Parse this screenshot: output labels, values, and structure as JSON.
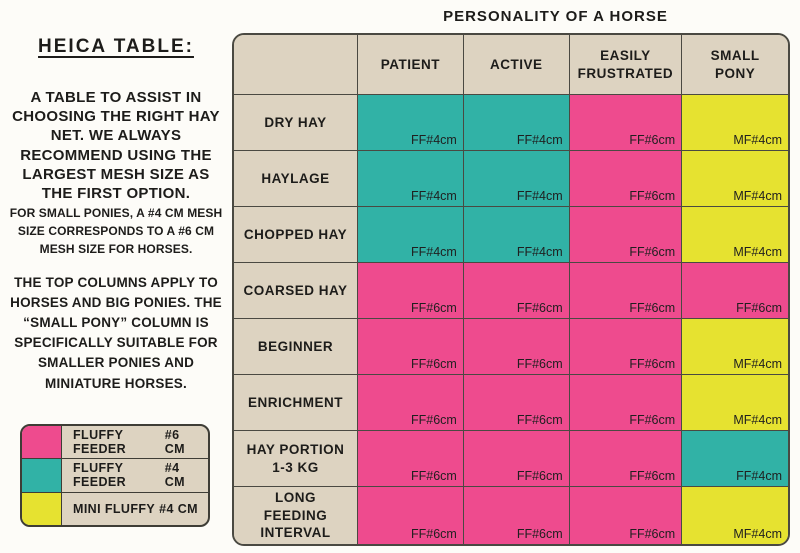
{
  "colors": {
    "pink_ff6": "#ee4b8e",
    "teal_ff4": "#31b2a6",
    "yellow_mf4": "#e6e230",
    "tan": "#ddd3c1",
    "border": "#4a4942",
    "page_bg": "#fdfcf8"
  },
  "left_panel": {
    "heading": "HEICA TABLE:",
    "intro": "A TABLE TO ASSIST IN CHOOSING THE RIGHT HAY NET. WE ALWAYS RECOMMEND USING THE LARGEST MESH SIZE AS THE FIRST OPTION.",
    "note_small_ponies": "FOR SMALL PONIES, A #4 CM MESH SIZE CORRESPONDS TO A #6 CM MESH SIZE FOR HORSES.",
    "note_columns": "THE TOP COLUMNS APPLY TO HORSES AND BIG PONIES. THE “SMALL PONY” COLUMN IS SPECIFICALLY SUITABLE FOR SMALLER PONIES AND MINIATURE HORSES."
  },
  "legend": {
    "items": [
      {
        "product": "FF6",
        "name": "FLUFFY FEEDER",
        "size": "#6 CM",
        "color": "#ee4b8e"
      },
      {
        "product": "FF4",
        "name": "FLUFFY FEEDER",
        "size": "#4 CM",
        "color": "#31b2a6"
      },
      {
        "product": "MF4",
        "name": "MINI FLUFFY",
        "size": "#4 CM",
        "color": "#e6e230"
      }
    ]
  },
  "table": {
    "title": "PERSONALITY OF A HORSE",
    "columns": [
      "PATIENT",
      "ACTIVE",
      "EASILY FRUSTRATED",
      "SMALL PONY"
    ],
    "rows": [
      {
        "label": "DRY HAY",
        "cells": [
          {
            "text": "FF#4cm",
            "product": "FF4"
          },
          {
            "text": "FF#4cm",
            "product": "FF4"
          },
          {
            "text": "FF#6cm",
            "product": "FF6"
          },
          {
            "text": "MF#4cm",
            "product": "MF4"
          }
        ]
      },
      {
        "label": "HAYLAGE",
        "cells": [
          {
            "text": "FF#4cm",
            "product": "FF4"
          },
          {
            "text": "FF#4cm",
            "product": "FF4"
          },
          {
            "text": "FF#6cm",
            "product": "FF6"
          },
          {
            "text": "MF#4cm",
            "product": "MF4"
          }
        ]
      },
      {
        "label": "CHOPPED HAY",
        "cells": [
          {
            "text": "FF#4cm",
            "product": "FF4"
          },
          {
            "text": "FF#4cm",
            "product": "FF4"
          },
          {
            "text": "FF#6cm",
            "product": "FF6"
          },
          {
            "text": "MF#4cm",
            "product": "MF4"
          }
        ]
      },
      {
        "label": "COARSED HAY",
        "cells": [
          {
            "text": "FF#6cm",
            "product": "FF6"
          },
          {
            "text": "FF#6cm",
            "product": "FF6"
          },
          {
            "text": "FF#6cm",
            "product": "FF6"
          },
          {
            "text": "FF#6cm",
            "product": "FF6"
          }
        ]
      },
      {
        "label": "BEGINNER",
        "cells": [
          {
            "text": "FF#6cm",
            "product": "FF6"
          },
          {
            "text": "FF#6cm",
            "product": "FF6"
          },
          {
            "text": "FF#6cm",
            "product": "FF6"
          },
          {
            "text": "MF#4cm",
            "product": "MF4"
          }
        ]
      },
      {
        "label": "ENRICHMENT",
        "cells": [
          {
            "text": "FF#6cm",
            "product": "FF6"
          },
          {
            "text": "FF#6cm",
            "product": "FF6"
          },
          {
            "text": "FF#6cm",
            "product": "FF6"
          },
          {
            "text": "MF#4cm",
            "product": "MF4"
          }
        ]
      },
      {
        "label": "HAY PORTION 1-3 KG",
        "cells": [
          {
            "text": "FF#6cm",
            "product": "FF6"
          },
          {
            "text": "FF#6cm",
            "product": "FF6"
          },
          {
            "text": "FF#6cm",
            "product": "FF6"
          },
          {
            "text": "FF#4cm",
            "product": "FF4"
          }
        ]
      },
      {
        "label": "LONG FEEDING INTERVAL",
        "cells": [
          {
            "text": "FF#6cm",
            "product": "FF6"
          },
          {
            "text": "FF#6cm",
            "product": "FF6"
          },
          {
            "text": "FF#6cm",
            "product": "FF6"
          },
          {
            "text": "MF#4cm",
            "product": "MF4"
          }
        ]
      }
    ]
  },
  "chart_data": {
    "type": "table",
    "title": "PERSONALITY OF A HORSE",
    "columns": [
      "",
      "PATIENT",
      "ACTIVE",
      "EASILY FRUSTRATED",
      "SMALL PONY"
    ],
    "rows": [
      [
        "DRY HAY",
        "FF#4cm",
        "FF#4cm",
        "FF#6cm",
        "MF#4cm"
      ],
      [
        "HAYLAGE",
        "FF#4cm",
        "FF#4cm",
        "FF#6cm",
        "MF#4cm"
      ],
      [
        "CHOPPED HAY",
        "FF#4cm",
        "FF#4cm",
        "FF#6cm",
        "MF#4cm"
      ],
      [
        "COARSED HAY",
        "FF#6cm",
        "FF#6cm",
        "FF#6cm",
        "FF#6cm"
      ],
      [
        "BEGINNER",
        "FF#6cm",
        "FF#6cm",
        "FF#6cm",
        "MF#4cm"
      ],
      [
        "ENRICHMENT",
        "FF#6cm",
        "FF#6cm",
        "FF#6cm",
        "MF#4cm"
      ],
      [
        "HAY PORTION 1-3 KG",
        "FF#6cm",
        "FF#6cm",
        "FF#6cm",
        "FF#4cm"
      ],
      [
        "LONG FEEDING INTERVAL",
        "FF#6cm",
        "FF#6cm",
        "FF#6cm",
        "MF#4cm"
      ]
    ],
    "legend": [
      "FF#6cm = FLUFFY FEEDER #6 CM (pink #ee4b8e)",
      "FF#4cm = FLUFFY FEEDER #4 CM (teal #31b2a6)",
      "MF#4cm = MINI FLUFFY #4 CM (yellow #e6e230)"
    ],
    "layout": "matrix of recommended hay-net mesh per hay type (rows) and horse personality (columns)"
  }
}
